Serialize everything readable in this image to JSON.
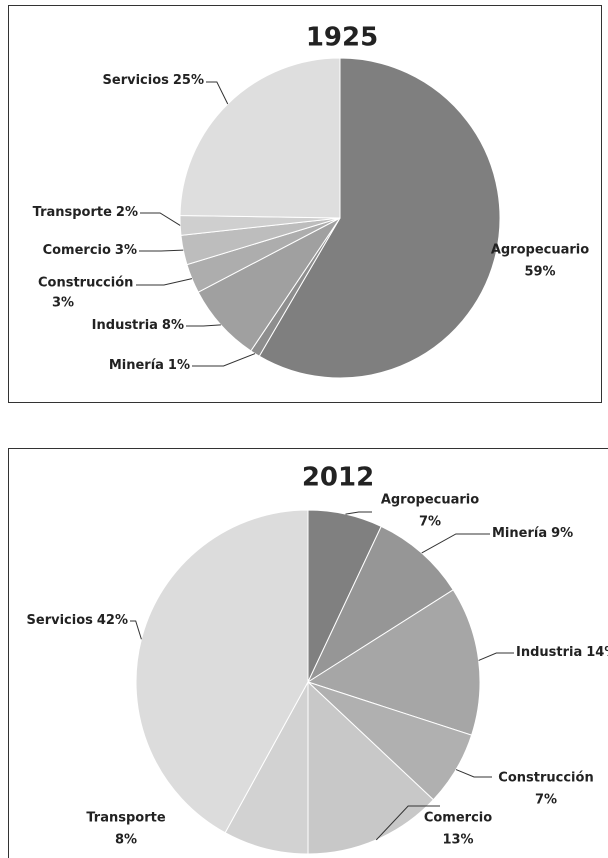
{
  "chart_data": [
    {
      "type": "pie",
      "title": "1925",
      "categories": [
        "Agropecuario",
        "Minería",
        "Industria",
        "Construcción",
        "Comercio",
        "Transporte",
        "Servicios"
      ],
      "values": [
        59,
        1,
        8,
        3,
        3,
        2,
        25
      ],
      "value_labels": [
        "59%",
        "1%",
        "8%",
        "3%",
        "3%",
        "2%",
        "25%"
      ],
      "colors": [
        "#7f7f7f",
        "#8e8e8e",
        "#a0a0a0",
        "#adadad",
        "#bdbdbd",
        "#cfcfcf",
        "#dedede"
      ]
    },
    {
      "type": "pie",
      "title": "2012",
      "categories": [
        "Agropecuario",
        "Minería",
        "Industria",
        "Construcción",
        "Comercio",
        "Transporte",
        "Servicios"
      ],
      "values": [
        7,
        9,
        14,
        7,
        13,
        8,
        42
      ],
      "value_labels": [
        "7%",
        "9%",
        "14%",
        "7%",
        "13%",
        "8%",
        "42%"
      ],
      "colors": [
        "#808080",
        "#969696",
        "#a6a6a6",
        "#b0b0b0",
        "#c8c8c8",
        "#d2d2d2",
        "#dcdcdc"
      ]
    }
  ]
}
